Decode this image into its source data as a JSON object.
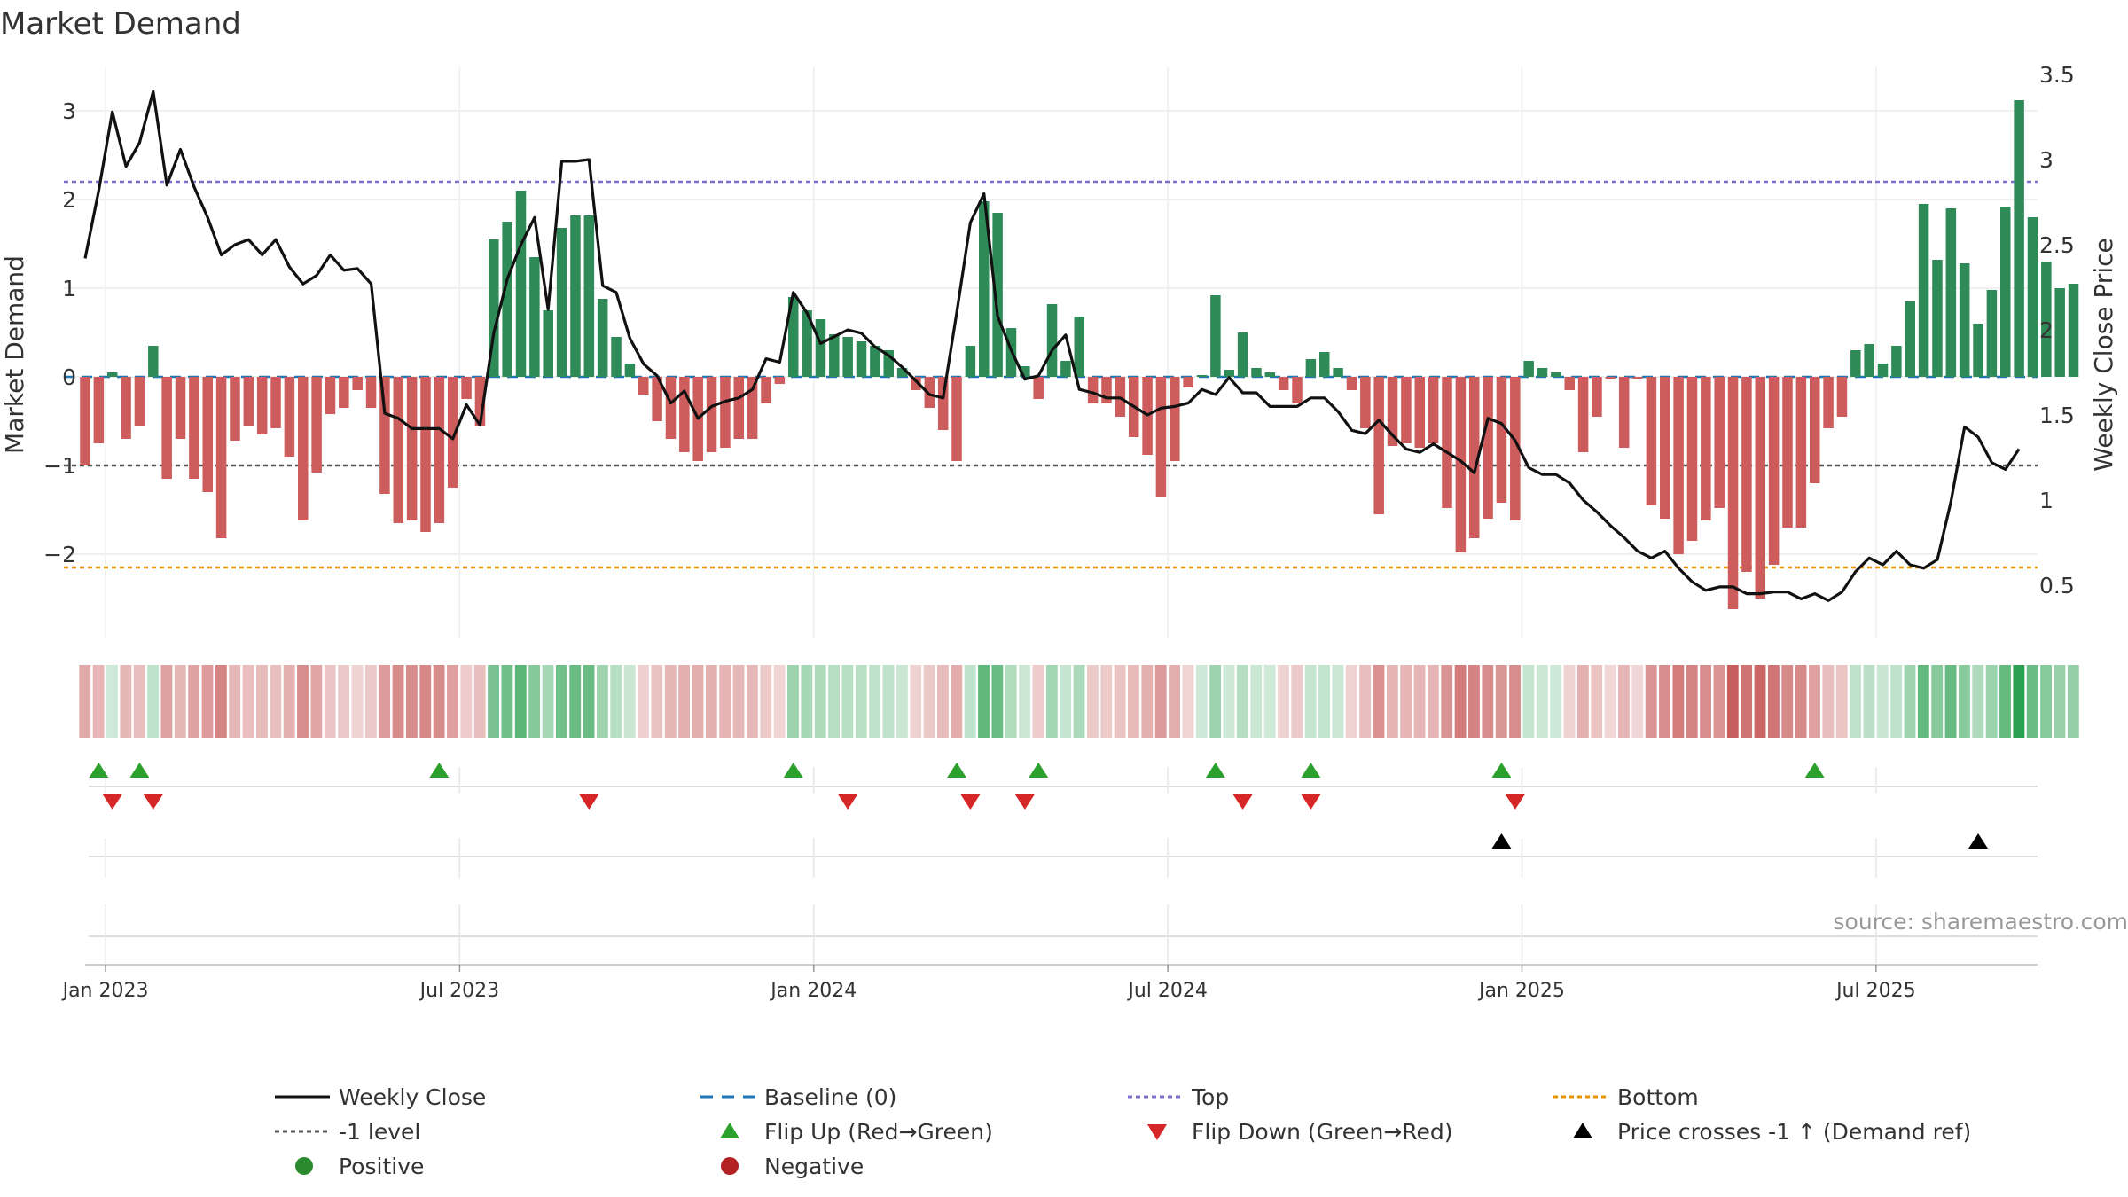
{
  "chart_data": {
    "type": "bar+line",
    "title": "Market Demand",
    "ylabel_left": "Market Demand",
    "ylabel_right": "Weekly Close Price",
    "ylim_left": [
      -2.9,
      3.35
    ],
    "ylim_right": [
      0.1,
      3.6
    ],
    "yticks_left": [
      "3",
      "2",
      "1",
      "0",
      "−1",
      "−2"
    ],
    "yticks_left_values": [
      3,
      2,
      1,
      0,
      -1,
      -2
    ],
    "yticks_right": [
      "3.5",
      "3",
      "2.5",
      "2",
      "1.5",
      "1",
      "0.5"
    ],
    "yticks_right_values": [
      3.5,
      3,
      2.5,
      2,
      1.5,
      1,
      0.5
    ],
    "xticks": [
      "Jan 2023",
      "Jul 2023",
      "Jan 2024",
      "Jul 2024",
      "Jan 2025",
      "Jul 2025"
    ],
    "xticks_week_index": [
      1.5,
      27.5,
      53.5,
      79.5,
      105.5,
      131.5
    ],
    "start_week": "2022-12-25",
    "levels": {
      "top": 2.2,
      "minus_one": -1.0,
      "bottom": -2.15,
      "baseline": 0
    },
    "colors": {
      "positive": "#2e8b57",
      "negative": "#cd5c5c",
      "close": "#111111",
      "baseline": "#1f77b4",
      "top": "#7a6fc9",
      "minus_one": "#555555",
      "bottom": "#e69500",
      "flip_up": "#2ca02c",
      "flip_down": "#d62728"
    },
    "demand": [
      -1,
      -0.75,
      0.05,
      -0.7,
      -0.55,
      0.35,
      -1.15,
      -0.7,
      -1.15,
      -1.3,
      -1.82,
      -0.72,
      -0.55,
      -0.65,
      -0.58,
      -0.9,
      -1.62,
      -1.08,
      -0.42,
      -0.35,
      -0.15,
      -0.35,
      -1.32,
      -1.65,
      -1.62,
      -1.75,
      -1.65,
      -1.25,
      -0.25,
      -0.55,
      1.55,
      1.75,
      2.1,
      1.35,
      0.75,
      1.68,
      1.82,
      1.82,
      0.88,
      0.45,
      0.15,
      -0.2,
      -0.5,
      -0.7,
      -0.85,
      -0.95,
      -0.85,
      -0.8,
      -0.7,
      -0.7,
      -0.3,
      -0.08,
      0.9,
      0.75,
      0.65,
      0.48,
      0.45,
      0.4,
      0.35,
      0.3,
      0.1,
      -0.15,
      -0.35,
      -0.6,
      -0.95,
      0.35,
      1.98,
      1.85,
      0.55,
      0.12,
      -0.25,
      0.82,
      0.18,
      0.68,
      -0.3,
      -0.3,
      -0.45,
      -0.68,
      -0.88,
      -1.35,
      -0.95,
      -0.12,
      0.02,
      0.92,
      0.08,
      0.5,
      0.1,
      0.05,
      -0.15,
      -0.3,
      0.2,
      0.28,
      0.1,
      -0.15,
      -0.58,
      -1.55,
      -0.78,
      -0.75,
      -0.8,
      -0.75,
      -1.48,
      -1.98,
      -1.82,
      -1.6,
      -1.42,
      -1.62,
      0.18,
      0.1,
      0.05,
      -0.15,
      -0.85,
      -0.45,
      -0.02,
      -0.8,
      -0.02,
      -1.45,
      -1.6,
      -2.0,
      -1.85,
      -1.62,
      -1.48,
      -2.62,
      -2.2,
      -2.5,
      -2.12,
      -1.7,
      -1.7,
      -1.2,
      -0.58,
      -0.45,
      0.3,
      0.37,
      0.15,
      0.35,
      0.85,
      1.95,
      1.32,
      1.9,
      1.28,
      0.6,
      0.98,
      1.92,
      3.12,
      1.8,
      1.3,
      1.0,
      1.05
    ],
    "close": [
      2.42,
      2.82,
      3.28,
      2.96,
      3.1,
      3.4,
      2.85,
      3.06,
      2.84,
      2.66,
      2.44,
      2.5,
      2.53,
      2.44,
      2.53,
      2.37,
      2.27,
      2.32,
      2.44,
      2.35,
      2.36,
      2.27,
      1.51,
      1.48,
      1.42,
      1.42,
      1.42,
      1.36,
      1.56,
      1.44,
      1.98,
      2.3,
      2.5,
      2.66,
      2.12,
      2.99,
      2.99,
      3.0,
      2.26,
      2.22,
      1.95,
      1.8,
      1.73,
      1.57,
      1.64,
      1.48,
      1.55,
      1.58,
      1.6,
      1.65,
      1.83,
      1.81,
      2.22,
      2.1,
      1.92,
      1.96,
      2.0,
      1.98,
      1.9,
      1.85,
      1.78,
      1.7,
      1.62,
      1.6,
      2.1,
      2.63,
      2.8,
      2.08,
      1.88,
      1.71,
      1.73,
      1.88,
      1.97,
      1.65,
      1.63,
      1.6,
      1.6,
      1.55,
      1.5,
      1.54,
      1.55,
      1.57,
      1.65,
      1.62,
      1.72,
      1.63,
      1.63,
      1.55,
      1.55,
      1.55,
      1.6,
      1.6,
      1.52,
      1.41,
      1.39,
      1.47,
      1.38,
      1.3,
      1.28,
      1.33,
      1.28,
      1.23,
      1.16,
      1.48,
      1.45,
      1.35,
      1.19,
      1.15,
      1.15,
      1.1,
      1.0,
      0.93,
      0.85,
      0.78,
      0.7,
      0.66,
      0.7,
      0.6,
      0.52,
      0.47,
      0.49,
      0.49,
      0.45,
      0.45,
      0.46,
      0.46,
      0.42,
      0.45,
      0.41,
      0.46,
      0.58,
      0.66,
      0.62,
      0.7,
      0.62,
      0.6,
      0.65,
      0.99,
      1.43,
      1.37,
      1.22,
      1.18,
      1.3
    ],
    "flip_up_weeks": [
      1,
      4,
      26,
      52,
      64,
      70,
      83,
      90,
      104,
      127
    ],
    "flip_down_weeks": [
      2,
      5,
      37,
      56,
      65,
      69,
      85,
      90,
      105
    ],
    "price_cross_weeks": [
      104,
      139
    ],
    "x_axis_month_lines": [
      1.5,
      27.5,
      53.5,
      79.5,
      105.5,
      131.5
    ]
  },
  "source": "source: sharemaestro.com",
  "legend": [
    {
      "key": "close",
      "label": "Weekly Close"
    },
    {
      "key": "baseline",
      "label": "Baseline (0)"
    },
    {
      "key": "top",
      "label": "Top"
    },
    {
      "key": "bottom",
      "label": "Bottom"
    },
    {
      "key": "minus_one",
      "label": "-1 level"
    },
    {
      "key": "flip_up",
      "label": "Flip Up (Red→Green)"
    },
    {
      "key": "flip_down",
      "label": "Flip Down (Green→Red)"
    },
    {
      "key": "cross",
      "label": "Price crosses -1 ↑ (Demand ref)"
    },
    {
      "key": "positive",
      "label": "Positive"
    },
    {
      "key": "negative",
      "label": "Negative"
    }
  ]
}
